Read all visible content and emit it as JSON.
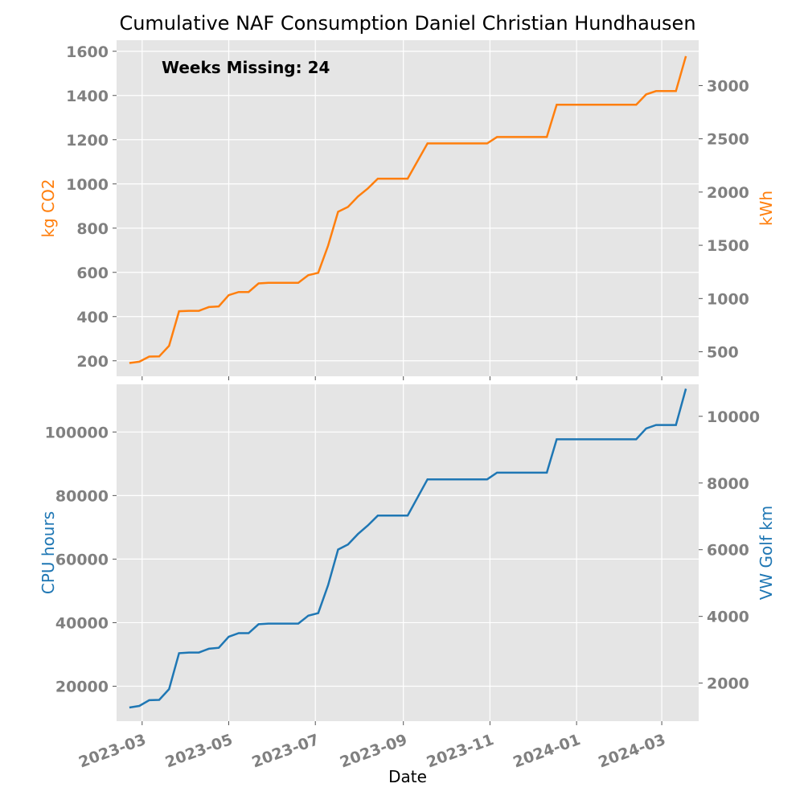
{
  "title": "Cumulative NAF Consumption Daniel Christian Hundhausen",
  "colors": {
    "co2": "#ff7f0e",
    "cpu": "#1f77b4",
    "background": "#e5e5e5",
    "grid": "#ffffff",
    "tick": "#808080"
  },
  "chart_data": [
    {
      "type": "line",
      "panel": "top",
      "annotation": "Weeks Missing: 24",
      "xlabel": "",
      "ylabel": "kg CO2",
      "ylabel_right": "kWh",
      "ylim": [
        130,
        1650
      ],
      "yticks": [
        200,
        400,
        600,
        800,
        1000,
        1200,
        1400,
        1600
      ],
      "yticks_right": [
        500,
        1000,
        1500,
        2000,
        2500,
        3000
      ],
      "right_axis_factor": 2.0764,
      "grid": true,
      "x": [
        "2023-02-20",
        "2023-02-27",
        "2023-03-06",
        "2023-03-13",
        "2023-03-20",
        "2023-03-27",
        "2023-04-03",
        "2023-04-10",
        "2023-04-17",
        "2023-04-24",
        "2023-05-01",
        "2023-05-08",
        "2023-05-15",
        "2023-05-22",
        "2023-05-29",
        "2023-06-19",
        "2023-06-26",
        "2023-07-03",
        "2023-07-10",
        "2023-07-17",
        "2023-07-24",
        "2023-07-31",
        "2023-08-07",
        "2023-08-14",
        "2023-09-04",
        "2023-09-18",
        "2023-10-30",
        "2023-11-06",
        "2023-12-11",
        "2023-12-18",
        "2024-02-12",
        "2024-02-19",
        "2024-02-26",
        "2024-03-11",
        "2024-03-18"
      ],
      "series": [
        {
          "values": [
            190,
            196,
            219,
            220,
            268,
            424,
            426,
            426,
            443,
            446,
            497,
            511,
            511,
            550,
            553,
            553,
            587,
            598,
            721,
            874,
            896,
            943,
            980,
            1024,
            1024,
            1183,
            1183,
            1212,
            1212,
            1358,
            1358,
            1405,
            1420,
            1420,
            1578
          ]
        }
      ]
    },
    {
      "type": "line",
      "panel": "bottom",
      "xlabel": "Date",
      "ylabel": "CPU hours",
      "ylabel_right": "VW Golf km",
      "ylim": [
        9000,
        115000
      ],
      "yticks": [
        20000,
        40000,
        60000,
        80000,
        100000
      ],
      "yticks_right": [
        2000,
        4000,
        6000,
        8000,
        10000
      ],
      "right_axis_factor": 0.0953,
      "xticks": [
        "2023-03",
        "2023-05",
        "2023-07",
        "2023-09",
        "2023-11",
        "2024-01",
        "2024-03"
      ],
      "grid": true,
      "x": [
        "2023-02-20",
        "2023-02-27",
        "2023-03-06",
        "2023-03-13",
        "2023-03-20",
        "2023-03-27",
        "2023-04-03",
        "2023-04-10",
        "2023-04-17",
        "2023-04-24",
        "2023-05-01",
        "2023-05-08",
        "2023-05-15",
        "2023-05-22",
        "2023-05-29",
        "2023-06-19",
        "2023-06-26",
        "2023-07-03",
        "2023-07-10",
        "2023-07-17",
        "2023-07-24",
        "2023-07-31",
        "2023-08-07",
        "2023-08-14",
        "2023-09-04",
        "2023-09-18",
        "2023-10-30",
        "2023-11-06",
        "2023-12-11",
        "2023-12-18",
        "2024-02-12",
        "2024-02-19",
        "2024-02-26",
        "2024-03-11",
        "2024-03-18"
      ],
      "series": [
        {
          "values": [
            13300,
            13800,
            15600,
            15700,
            19100,
            30400,
            30600,
            30600,
            31800,
            32100,
            35600,
            36700,
            36700,
            39500,
            39700,
            39700,
            42200,
            43000,
            51800,
            63000,
            64600,
            67900,
            70600,
            73700,
            73700,
            85100,
            85100,
            87200,
            87200,
            97700,
            97700,
            101100,
            102200,
            102200,
            113600
          ]
        }
      ]
    }
  ]
}
